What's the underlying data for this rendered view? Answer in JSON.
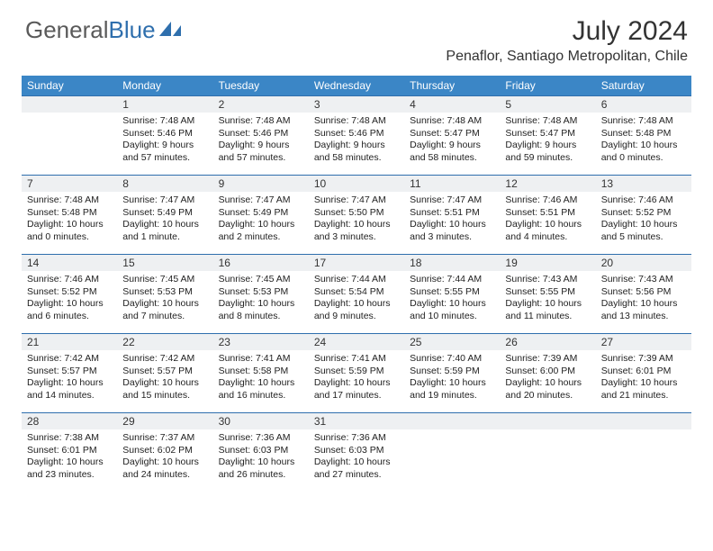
{
  "logo": {
    "general": "General",
    "blue": "Blue"
  },
  "title": "July 2024",
  "location": "Penaflor, Santiago Metropolitan, Chile",
  "brand_color": "#3b86c6",
  "border_color": "#2f6fad",
  "daynum_bg": "#eef0f2",
  "dow": [
    "Sunday",
    "Monday",
    "Tuesday",
    "Wednesday",
    "Thursday",
    "Friday",
    "Saturday"
  ],
  "weeks": [
    [
      {
        "n": "",
        "sr": "",
        "ss": "",
        "dl": ""
      },
      {
        "n": "1",
        "sr": "Sunrise: 7:48 AM",
        "ss": "Sunset: 5:46 PM",
        "dl": "Daylight: 9 hours and 57 minutes."
      },
      {
        "n": "2",
        "sr": "Sunrise: 7:48 AM",
        "ss": "Sunset: 5:46 PM",
        "dl": "Daylight: 9 hours and 57 minutes."
      },
      {
        "n": "3",
        "sr": "Sunrise: 7:48 AM",
        "ss": "Sunset: 5:46 PM",
        "dl": "Daylight: 9 hours and 58 minutes."
      },
      {
        "n": "4",
        "sr": "Sunrise: 7:48 AM",
        "ss": "Sunset: 5:47 PM",
        "dl": "Daylight: 9 hours and 58 minutes."
      },
      {
        "n": "5",
        "sr": "Sunrise: 7:48 AM",
        "ss": "Sunset: 5:47 PM",
        "dl": "Daylight: 9 hours and 59 minutes."
      },
      {
        "n": "6",
        "sr": "Sunrise: 7:48 AM",
        "ss": "Sunset: 5:48 PM",
        "dl": "Daylight: 10 hours and 0 minutes."
      }
    ],
    [
      {
        "n": "7",
        "sr": "Sunrise: 7:48 AM",
        "ss": "Sunset: 5:48 PM",
        "dl": "Daylight: 10 hours and 0 minutes."
      },
      {
        "n": "8",
        "sr": "Sunrise: 7:47 AM",
        "ss": "Sunset: 5:49 PM",
        "dl": "Daylight: 10 hours and 1 minute."
      },
      {
        "n": "9",
        "sr": "Sunrise: 7:47 AM",
        "ss": "Sunset: 5:49 PM",
        "dl": "Daylight: 10 hours and 2 minutes."
      },
      {
        "n": "10",
        "sr": "Sunrise: 7:47 AM",
        "ss": "Sunset: 5:50 PM",
        "dl": "Daylight: 10 hours and 3 minutes."
      },
      {
        "n": "11",
        "sr": "Sunrise: 7:47 AM",
        "ss": "Sunset: 5:51 PM",
        "dl": "Daylight: 10 hours and 3 minutes."
      },
      {
        "n": "12",
        "sr": "Sunrise: 7:46 AM",
        "ss": "Sunset: 5:51 PM",
        "dl": "Daylight: 10 hours and 4 minutes."
      },
      {
        "n": "13",
        "sr": "Sunrise: 7:46 AM",
        "ss": "Sunset: 5:52 PM",
        "dl": "Daylight: 10 hours and 5 minutes."
      }
    ],
    [
      {
        "n": "14",
        "sr": "Sunrise: 7:46 AM",
        "ss": "Sunset: 5:52 PM",
        "dl": "Daylight: 10 hours and 6 minutes."
      },
      {
        "n": "15",
        "sr": "Sunrise: 7:45 AM",
        "ss": "Sunset: 5:53 PM",
        "dl": "Daylight: 10 hours and 7 minutes."
      },
      {
        "n": "16",
        "sr": "Sunrise: 7:45 AM",
        "ss": "Sunset: 5:53 PM",
        "dl": "Daylight: 10 hours and 8 minutes."
      },
      {
        "n": "17",
        "sr": "Sunrise: 7:44 AM",
        "ss": "Sunset: 5:54 PM",
        "dl": "Daylight: 10 hours and 9 minutes."
      },
      {
        "n": "18",
        "sr": "Sunrise: 7:44 AM",
        "ss": "Sunset: 5:55 PM",
        "dl": "Daylight: 10 hours and 10 minutes."
      },
      {
        "n": "19",
        "sr": "Sunrise: 7:43 AM",
        "ss": "Sunset: 5:55 PM",
        "dl": "Daylight: 10 hours and 11 minutes."
      },
      {
        "n": "20",
        "sr": "Sunrise: 7:43 AM",
        "ss": "Sunset: 5:56 PM",
        "dl": "Daylight: 10 hours and 13 minutes."
      }
    ],
    [
      {
        "n": "21",
        "sr": "Sunrise: 7:42 AM",
        "ss": "Sunset: 5:57 PM",
        "dl": "Daylight: 10 hours and 14 minutes."
      },
      {
        "n": "22",
        "sr": "Sunrise: 7:42 AM",
        "ss": "Sunset: 5:57 PM",
        "dl": "Daylight: 10 hours and 15 minutes."
      },
      {
        "n": "23",
        "sr": "Sunrise: 7:41 AM",
        "ss": "Sunset: 5:58 PM",
        "dl": "Daylight: 10 hours and 16 minutes."
      },
      {
        "n": "24",
        "sr": "Sunrise: 7:41 AM",
        "ss": "Sunset: 5:59 PM",
        "dl": "Daylight: 10 hours and 17 minutes."
      },
      {
        "n": "25",
        "sr": "Sunrise: 7:40 AM",
        "ss": "Sunset: 5:59 PM",
        "dl": "Daylight: 10 hours and 19 minutes."
      },
      {
        "n": "26",
        "sr": "Sunrise: 7:39 AM",
        "ss": "Sunset: 6:00 PM",
        "dl": "Daylight: 10 hours and 20 minutes."
      },
      {
        "n": "27",
        "sr": "Sunrise: 7:39 AM",
        "ss": "Sunset: 6:01 PM",
        "dl": "Daylight: 10 hours and 21 minutes."
      }
    ],
    [
      {
        "n": "28",
        "sr": "Sunrise: 7:38 AM",
        "ss": "Sunset: 6:01 PM",
        "dl": "Daylight: 10 hours and 23 minutes."
      },
      {
        "n": "29",
        "sr": "Sunrise: 7:37 AM",
        "ss": "Sunset: 6:02 PM",
        "dl": "Daylight: 10 hours and 24 minutes."
      },
      {
        "n": "30",
        "sr": "Sunrise: 7:36 AM",
        "ss": "Sunset: 6:03 PM",
        "dl": "Daylight: 10 hours and 26 minutes."
      },
      {
        "n": "31",
        "sr": "Sunrise: 7:36 AM",
        "ss": "Sunset: 6:03 PM",
        "dl": "Daylight: 10 hours and 27 minutes."
      },
      {
        "n": "",
        "sr": "",
        "ss": "",
        "dl": ""
      },
      {
        "n": "",
        "sr": "",
        "ss": "",
        "dl": ""
      },
      {
        "n": "",
        "sr": "",
        "ss": "",
        "dl": ""
      }
    ]
  ]
}
